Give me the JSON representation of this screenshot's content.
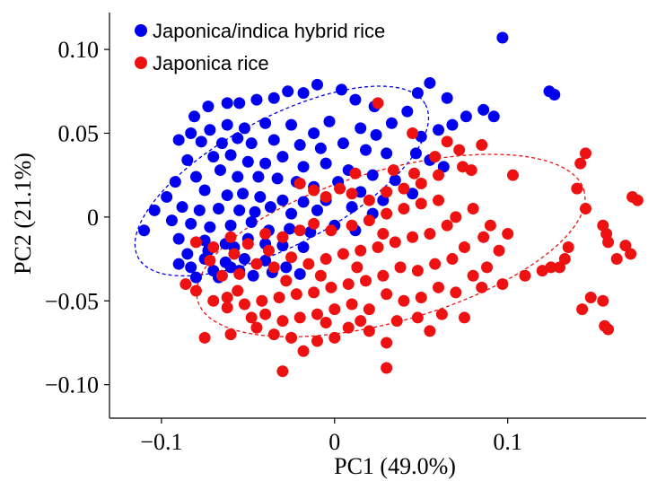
{
  "chart_data": {
    "type": "scatter",
    "title": "",
    "xlabel": "PC1 (49.0%)",
    "ylabel": "PC2 (21.1%)",
    "xlim": [
      -0.13,
      0.18
    ],
    "ylim": [
      -0.12,
      0.122
    ],
    "x_ticks": [
      -0.1,
      0,
      0.1
    ],
    "x_tick_labels": [
      "−0.1",
      "0",
      "0.1"
    ],
    "y_ticks": [
      0.1,
      0.05,
      0,
      -0.05,
      -0.1
    ],
    "y_tick_labels": [
      "0.10",
      "0.05",
      "0",
      "−0.05",
      "−0.10"
    ],
    "grid": false,
    "legend_position": "top-left",
    "series": [
      {
        "name": "Japonica/indica hybrid rice",
        "color": "#0000ee",
        "points": [
          [
            0.097,
            0.107
          ],
          [
            0.124,
            0.075
          ],
          [
            0.127,
            0.073
          ],
          [
            0.086,
            0.064
          ],
          [
            0.065,
            0.071
          ],
          [
            0.055,
            0.08
          ],
          [
            0.048,
            0.074
          ],
          [
            0.076,
            0.06
          ],
          [
            0.092,
            0.06
          ],
          [
            0.042,
            0.063
          ],
          [
            0.033,
            0.056
          ],
          [
            0.023,
            0.066
          ],
          [
            0.012,
            0.07
          ],
          [
            0.004,
            0.076
          ],
          [
            -0.01,
            0.079
          ],
          [
            -0.018,
            0.074
          ],
          [
            -0.027,
            0.075
          ],
          [
            -0.035,
            0.071
          ],
          [
            -0.045,
            0.07
          ],
          [
            -0.055,
            0.068
          ],
          [
            -0.062,
            0.068
          ],
          [
            -0.073,
            0.066
          ],
          [
            -0.081,
            0.06
          ],
          [
            -0.003,
            0.057
          ],
          [
            0.015,
            0.053
          ],
          [
            0.024,
            0.049
          ],
          [
            -0.012,
            0.05
          ],
          [
            -0.025,
            0.055
          ],
          [
            -0.04,
            0.056
          ],
          [
            -0.052,
            0.053
          ],
          [
            -0.062,
            0.055
          ],
          [
            -0.072,
            0.052
          ],
          [
            -0.083,
            0.05
          ],
          [
            -0.09,
            0.046
          ],
          [
            -0.077,
            0.045
          ],
          [
            -0.065,
            0.044
          ],
          [
            -0.056,
            0.047
          ],
          [
            -0.048,
            0.044
          ],
          [
            -0.035,
            0.046
          ],
          [
            -0.02,
            0.043
          ],
          [
            -0.008,
            0.041
          ],
          [
            0.005,
            0.044
          ],
          [
            0.018,
            0.04
          ],
          [
            0.03,
            0.038
          ],
          [
            0.05,
            0.048
          ],
          [
            0.06,
            0.052
          ],
          [
            0.068,
            0.055
          ],
          [
            0.047,
            0.038
          ],
          [
            0.055,
            0.034
          ],
          [
            0.063,
            0.03
          ],
          [
            -0.06,
            0.037
          ],
          [
            -0.07,
            0.036
          ],
          [
            -0.085,
            0.034
          ],
          [
            -0.05,
            0.033
          ],
          [
            -0.04,
            0.032
          ],
          [
            -0.03,
            0.036
          ],
          [
            -0.018,
            0.03
          ],
          [
            -0.005,
            0.032
          ],
          [
            0.008,
            0.028
          ],
          [
            0.022,
            0.025
          ],
          [
            0.035,
            0.022
          ],
          [
            -0.066,
            0.028
          ],
          [
            -0.056,
            0.024
          ],
          [
            -0.044,
            0.024
          ],
          [
            -0.033,
            0.023
          ],
          [
            -0.022,
            0.021
          ],
          [
            -0.012,
            0.018
          ],
          [
            0.002,
            0.021
          ],
          [
            0.015,
            0.015
          ],
          [
            0.028,
            0.01
          ],
          [
            0.045,
            0.014
          ],
          [
            -0.08,
            0.024
          ],
          [
            -0.092,
            0.021
          ],
          [
            -0.075,
            0.016
          ],
          [
            -0.062,
            0.013
          ],
          [
            -0.053,
            0.014
          ],
          [
            -0.043,
            0.012
          ],
          [
            -0.03,
            0.01
          ],
          [
            -0.018,
            0.009
          ],
          [
            -0.005,
            0.01
          ],
          [
            0.01,
            0.006
          ],
          [
            -0.097,
            0.012
          ],
          [
            -0.088,
            0.006
          ],
          [
            -0.078,
            0.004
          ],
          [
            -0.067,
            0.005
          ],
          [
            -0.055,
            0.004
          ],
          [
            -0.046,
            0.003
          ],
          [
            -0.037,
            0.006
          ],
          [
            -0.025,
            0.002
          ],
          [
            -0.01,
            0.004
          ],
          [
            -0.104,
            0.004
          ],
          [
            -0.094,
            -0.002
          ],
          [
            -0.083,
            -0.004
          ],
          [
            -0.072,
            -0.006
          ],
          [
            -0.06,
            -0.005
          ],
          [
            -0.048,
            -0.003
          ],
          [
            -0.038,
            -0.008
          ],
          [
            -0.026,
            -0.007
          ],
          [
            -0.014,
            -0.009
          ],
          [
            -0.11,
            -0.008
          ],
          [
            -0.09,
            -0.013
          ],
          [
            -0.075,
            -0.014
          ],
          [
            -0.063,
            -0.016
          ],
          [
            -0.05,
            -0.013
          ],
          [
            -0.04,
            -0.016
          ],
          [
            -0.03,
            -0.017
          ],
          [
            -0.018,
            -0.018
          ],
          [
            -0.085,
            -0.022
          ],
          [
            -0.075,
            -0.025
          ],
          [
            -0.063,
            -0.027
          ],
          [
            -0.052,
            -0.025
          ],
          [
            -0.09,
            -0.028
          ],
          [
            -0.083,
            -0.03
          ],
          [
            -0.07,
            -0.032
          ],
          [
            -0.06,
            -0.03
          ],
          [
            -0.04,
            -0.026
          ],
          [
            -0.028,
            -0.03
          ],
          [
            -0.047,
            -0.035
          ],
          [
            -0.08,
            -0.036
          ],
          [
            -0.067,
            -0.036
          ],
          [
            -0.055,
            -0.032
          ],
          [
            -0.036,
            -0.033
          ],
          [
            -0.02,
            -0.034
          ],
          [
            -0.073,
            -0.02
          ],
          [
            -0.058,
            -0.018
          ],
          [
            0.0,
            -0.005
          ],
          [
            0.012,
            -0.008
          ],
          [
            0.022,
            0.002
          ]
        ]
      },
      {
        "name": "Japonica rice",
        "color": "#ee1111",
        "points": [
          [
            0.072,
            0.04
          ],
          [
            0.085,
            0.043
          ],
          [
            0.074,
            0.03
          ],
          [
            0.079,
            0.028
          ],
          [
            0.103,
            0.025
          ],
          [
            0.145,
            0.038
          ],
          [
            0.142,
            0.032
          ],
          [
            0.14,
            0.017
          ],
          [
            0.175,
            0.01
          ],
          [
            0.172,
            0.012
          ],
          [
            0.145,
            0.005
          ],
          [
            0.155,
            -0.005
          ],
          [
            0.157,
            -0.01
          ],
          [
            0.158,
            -0.015
          ],
          [
            0.168,
            -0.017
          ],
          [
            0.171,
            -0.022
          ],
          [
            0.163,
            -0.025
          ],
          [
            0.135,
            -0.018
          ],
          [
            0.133,
            -0.025
          ],
          [
            0.13,
            -0.03
          ],
          [
            0.148,
            -0.048
          ],
          [
            0.155,
            -0.05
          ],
          [
            0.143,
            -0.055
          ],
          [
            0.156,
            -0.065
          ],
          [
            0.158,
            -0.067
          ],
          [
            0.125,
            -0.03
          ],
          [
            0.12,
            -0.032
          ],
          [
            0.11,
            -0.035
          ],
          [
            0.097,
            -0.04
          ],
          [
            0.085,
            -0.042
          ],
          [
            0.075,
            -0.06
          ],
          [
            0.055,
            -0.068
          ],
          [
            0.03,
            -0.075
          ],
          [
            0.02,
            -0.068
          ],
          [
            0.008,
            -0.066
          ],
          [
            0.0,
            -0.072
          ],
          [
            -0.01,
            -0.074
          ],
          [
            -0.018,
            -0.08
          ],
          [
            -0.025,
            -0.072
          ],
          [
            -0.035,
            -0.07
          ],
          [
            -0.045,
            -0.066
          ],
          [
            -0.06,
            -0.07
          ],
          [
            -0.075,
            -0.072
          ],
          [
            -0.062,
            -0.054
          ],
          [
            -0.07,
            -0.05
          ],
          [
            -0.08,
            -0.044
          ],
          [
            -0.086,
            -0.04
          ],
          [
            -0.03,
            -0.092
          ],
          [
            0.03,
            -0.09
          ],
          [
            0.025,
            0.068
          ],
          [
            0.045,
            0.05
          ],
          [
            0.065,
            0.045
          ],
          [
            0.06,
            0.025
          ],
          [
            0.05,
            0.02
          ],
          [
            0.04,
            0.017
          ],
          [
            0.03,
            0.015
          ],
          [
            0.02,
            0.01
          ],
          [
            0.01,
            0.014
          ],
          [
            0.003,
            0.017
          ],
          [
            -0.005,
            0.012
          ],
          [
            -0.012,
            0.016
          ],
          [
            0.06,
            0.01
          ],
          [
            0.05,
            0.008
          ],
          [
            0.04,
            0.005
          ],
          [
            0.03,
            0.002
          ],
          [
            0.02,
            -0.002
          ],
          [
            0.01,
            -0.005
          ],
          [
            -0.002,
            -0.008
          ],
          [
            -0.012,
            -0.004
          ],
          [
            -0.02,
            -0.008
          ],
          [
            -0.03,
            -0.012
          ],
          [
            -0.04,
            -0.01
          ],
          [
            -0.05,
            -0.016
          ],
          [
            -0.06,
            -0.012
          ],
          [
            -0.07,
            -0.018
          ],
          [
            -0.08,
            -0.015
          ],
          [
            0.065,
            -0.005
          ],
          [
            0.055,
            -0.01
          ],
          [
            0.045,
            -0.012
          ],
          [
            0.035,
            -0.015
          ],
          [
            0.025,
            -0.018
          ],
          [
            0.015,
            -0.02
          ],
          [
            0.005,
            -0.022
          ],
          [
            -0.005,
            -0.025
          ],
          [
            -0.015,
            -0.028
          ],
          [
            -0.025,
            -0.024
          ],
          [
            -0.035,
            -0.03
          ],
          [
            -0.045,
            -0.028
          ],
          [
            -0.055,
            -0.034
          ],
          [
            -0.065,
            -0.035
          ],
          [
            0.075,
            -0.018
          ],
          [
            0.068,
            -0.025
          ],
          [
            0.058,
            -0.028
          ],
          [
            0.048,
            -0.032
          ],
          [
            0.038,
            -0.03
          ],
          [
            0.028,
            -0.035
          ],
          [
            0.018,
            -0.038
          ],
          [
            0.008,
            -0.04
          ],
          [
            -0.002,
            -0.042
          ],
          [
            -0.012,
            -0.045
          ],
          [
            -0.022,
            -0.046
          ],
          [
            -0.032,
            -0.048
          ],
          [
            -0.042,
            -0.05
          ],
          [
            -0.052,
            -0.052
          ],
          [
            -0.062,
            -0.048
          ],
          [
            0.08,
            -0.035
          ],
          [
            0.07,
            -0.045
          ],
          [
            0.06,
            -0.042
          ],
          [
            0.05,
            -0.048
          ],
          [
            0.04,
            -0.05
          ],
          [
            0.03,
            -0.046
          ],
          [
            0.02,
            -0.055
          ],
          [
            0.01,
            -0.052
          ],
          [
            0.0,
            -0.055
          ],
          [
            -0.01,
            -0.058
          ],
          [
            -0.02,
            -0.06
          ],
          [
            -0.03,
            -0.062
          ],
          [
            -0.04,
            -0.058
          ],
          [
            0.09,
            -0.005
          ],
          [
            0.095,
            -0.02
          ],
          [
            0.088,
            -0.03
          ],
          [
            0.062,
            -0.058
          ],
          [
            0.048,
            -0.06
          ],
          [
            0.036,
            -0.062
          ],
          [
            0.015,
            -0.062
          ],
          [
            -0.005,
            -0.063
          ],
          [
            -0.048,
            -0.06
          ],
          [
            -0.056,
            -0.044
          ],
          [
            0.07,
            0.0
          ],
          [
            0.08,
            0.005
          ],
          [
            0.058,
            0.036
          ],
          [
            0.046,
            0.026
          ],
          [
            0.034,
            0.028
          ],
          [
            0.012,
            0.026
          ],
          [
            -0.02,
            0.02
          ],
          [
            -0.038,
            -0.02
          ],
          [
            -0.058,
            -0.022
          ],
          [
            -0.072,
            -0.026
          ],
          [
            0.086,
            -0.012
          ],
          [
            0.1,
            -0.01
          ],
          [
            0.028,
            -0.01
          ],
          [
            0.013,
            -0.03
          ],
          [
            -0.008,
            -0.035
          ],
          [
            -0.028,
            -0.038
          ]
        ]
      }
    ],
    "ellipses": [
      {
        "series": "Japonica/indica hybrid rice",
        "color": "#0000ee",
        "center": [
          -0.0305,
          0.0215
        ],
        "semi_axes": [
          0.094,
          0.038
        ],
        "angle_deg": 28
      },
      {
        "series": "Japonica rice",
        "color": "#ee1111",
        "center": [
          0.0325,
          -0.017
        ],
        "semi_axes": [
          0.116,
          0.045
        ],
        "angle_deg": 16
      }
    ]
  }
}
